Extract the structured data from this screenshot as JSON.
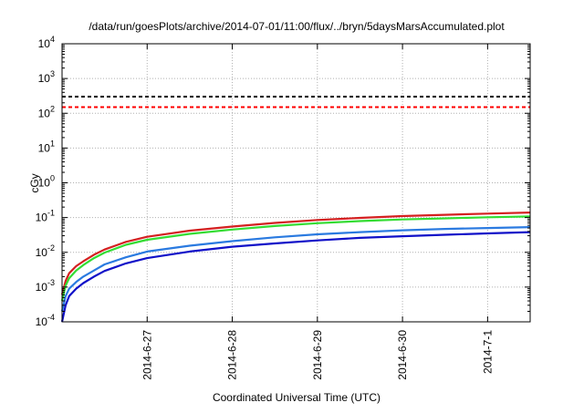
{
  "chart_data": {
    "type": "line",
    "title": "/data/run/goesPlots/archive/2014-07-01/11:00/flux/../bryn/5daysMarsAccumulated.plot",
    "xlabel": "Coordinated Universal Time (UTC)",
    "ylabel": "cGy",
    "yscale": "log",
    "ylim": [
      0.0001,
      10000
    ],
    "xlim": [
      "2014-06-26 00:00",
      "2014-07-01 12:00"
    ],
    "grid": true,
    "x_ticks": [
      "2014-6-27",
      "2014-6-28",
      "2014-6-29",
      "2014-6-30",
      "2014-7-1"
    ],
    "y_ticks": [
      {
        "base": "10",
        "exp": "-4"
      },
      {
        "base": "10",
        "exp": "-3"
      },
      {
        "base": "10",
        "exp": "-2"
      },
      {
        "base": "10",
        "exp": "-1"
      },
      {
        "base": "10",
        "exp": "0"
      },
      {
        "base": "10",
        "exp": "1"
      },
      {
        "base": "10",
        "exp": "2"
      },
      {
        "base": "10",
        "exp": "3"
      },
      {
        "base": "10",
        "exp": "4"
      }
    ],
    "reference_lines": [
      {
        "value": 300,
        "color": "#000000",
        "style": "dashed"
      },
      {
        "value": 150,
        "color": "#ff0000",
        "style": "dashed"
      }
    ],
    "series": [
      {
        "color": "#d42020",
        "x": [
          "2014-06-26 00:00",
          "2014-06-26 01:00",
          "2014-06-26 02:00",
          "2014-06-26 04:00",
          "2014-06-26 06:00",
          "2014-06-26 09:00",
          "2014-06-26 12:00",
          "2014-06-26 18:00",
          "2014-06-27 00:00",
          "2014-06-27 12:00",
          "2014-06-28 00:00",
          "2014-06-28 12:00",
          "2014-06-29 00:00",
          "2014-06-29 12:00",
          "2014-06-30 00:00",
          "2014-06-30 12:00",
          "2014-07-01 00:00",
          "2014-07-01 12:00"
        ],
        "y": [
          0.0006,
          0.0015,
          0.0025,
          0.004,
          0.0055,
          0.0085,
          0.012,
          0.02,
          0.028,
          0.042,
          0.055,
          0.07,
          0.085,
          0.098,
          0.11,
          0.12,
          0.13,
          0.14
        ]
      },
      {
        "color": "#33dd33",
        "x": [
          "2014-06-26 00:00",
          "2014-06-26 01:00",
          "2014-06-26 02:00",
          "2014-06-26 04:00",
          "2014-06-26 06:00",
          "2014-06-26 09:00",
          "2014-06-26 12:00",
          "2014-06-26 18:00",
          "2014-06-27 00:00",
          "2014-06-27 12:00",
          "2014-06-28 00:00",
          "2014-06-28 12:00",
          "2014-06-29 00:00",
          "2014-06-29 12:00",
          "2014-06-30 00:00",
          "2014-06-30 12:00",
          "2014-07-01 00:00",
          "2014-07-01 12:00"
        ],
        "y": [
          0.0004,
          0.0011,
          0.0018,
          0.003,
          0.0043,
          0.0068,
          0.0098,
          0.0165,
          0.023,
          0.034,
          0.045,
          0.057,
          0.069,
          0.079,
          0.088,
          0.095,
          0.102,
          0.108
        ]
      },
      {
        "color": "#2a7ae0",
        "x": [
          "2014-06-26 00:00",
          "2014-06-26 01:00",
          "2014-06-26 02:00",
          "2014-06-26 04:00",
          "2014-06-26 06:00",
          "2014-06-26 09:00",
          "2014-06-26 12:00",
          "2014-06-26 18:00",
          "2014-06-27 00:00",
          "2014-06-27 12:00",
          "2014-06-28 00:00",
          "2014-06-28 12:00",
          "2014-06-29 00:00",
          "2014-06-29 12:00",
          "2014-06-30 00:00",
          "2014-06-30 12:00",
          "2014-07-01 00:00",
          "2014-07-01 12:00"
        ],
        "y": [
          0.0002,
          0.00055,
          0.0009,
          0.0014,
          0.002,
          0.003,
          0.0045,
          0.0072,
          0.0105,
          0.0155,
          0.021,
          0.027,
          0.033,
          0.038,
          0.043,
          0.047,
          0.05,
          0.053
        ]
      },
      {
        "color": "#1010c8",
        "x": [
          "2014-06-26 00:00",
          "2014-06-26 01:00",
          "2014-06-26 02:00",
          "2014-06-26 04:00",
          "2014-06-26 06:00",
          "2014-06-26 09:00",
          "2014-06-26 12:00",
          "2014-06-26 18:00",
          "2014-06-27 00:00",
          "2014-06-27 12:00",
          "2014-06-28 00:00",
          "2014-06-28 12:00",
          "2014-06-29 00:00",
          "2014-06-29 12:00",
          "2014-06-30 00:00",
          "2014-06-30 12:00",
          "2014-07-01 00:00",
          "2014-07-01 12:00"
        ],
        "y": [
          0.0001,
          0.0003,
          0.00055,
          0.0009,
          0.0013,
          0.002,
          0.0029,
          0.0048,
          0.0068,
          0.0105,
          0.0145,
          0.018,
          0.022,
          0.026,
          0.029,
          0.032,
          0.035,
          0.038
        ]
      }
    ]
  }
}
